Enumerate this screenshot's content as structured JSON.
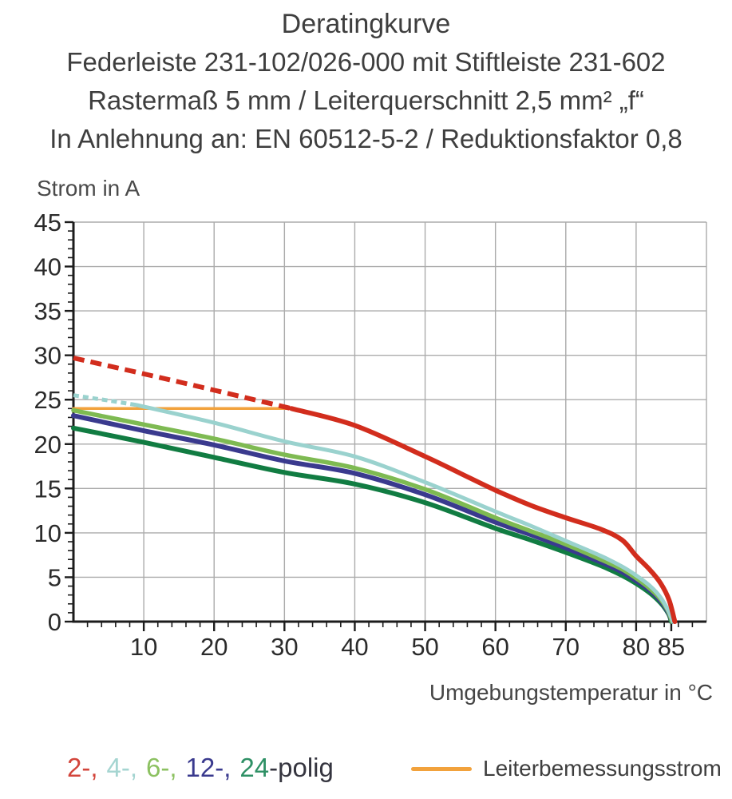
{
  "header": {
    "title": "Deratingkurve",
    "subtitle_product": "Federleiste 231-102/026-000 mit Stiftleiste 231-602",
    "subtitle_spec": "Rastermaß 5 mm / Leiterquerschnitt 2,5 mm² „f“",
    "subtitle_standard": "In Anlehnung an: EN 60512-5-2 / Reduktionsfaktor 0,8"
  },
  "chart_data": {
    "type": "line",
    "title": "Deratingkurve",
    "ylabel": "Strom in A",
    "xlabel": "Umgebungstemperatur in °C",
    "xlim": [
      0,
      90
    ],
    "ylim": [
      0,
      45
    ],
    "x_major_step": 10,
    "x_minor_step": 2,
    "y_major_step": 5,
    "y_minor_step": 1,
    "grid": true,
    "grid_color": "#ababab",
    "axis_color": "#1c1c1c",
    "tick_label_color": "#2b2b2b",
    "x_tick_labels": [
      10,
      20,
      30,
      40,
      50,
      60,
      70,
      80,
      85
    ],
    "y_tick_labels": [
      0,
      5,
      10,
      15,
      20,
      25,
      30,
      35,
      40,
      45
    ],
    "series": [
      {
        "name": "Leiterbemessungsstrom",
        "color": "#f2a23c",
        "width": 3.5,
        "segments": [
          {
            "dash": null,
            "points": [
              [
                0,
                24
              ],
              [
                31,
                24
              ]
            ]
          }
        ]
      },
      {
        "name": "24-polig",
        "color": "#117c42",
        "width": 6,
        "segments": [
          {
            "dash": null,
            "points": [
              [
                0,
                21.8
              ],
              [
                10,
                20.2
              ],
              [
                20,
                18.5
              ],
              [
                30,
                16.8
              ],
              [
                40,
                15.5
              ],
              [
                50,
                13.4
              ],
              [
                60,
                10.5
              ],
              [
                65,
                9.2
              ],
              [
                70,
                7.8
              ],
              [
                75,
                6.3
              ],
              [
                78,
                5.2
              ],
              [
                80,
                4.3
              ],
              [
                82,
                3.2
              ],
              [
                83.5,
                2.1
              ],
              [
                84.6,
                0.9
              ],
              [
                85,
                0
              ]
            ]
          }
        ]
      },
      {
        "name": "12-polig",
        "color": "#3a3a8e",
        "width": 6,
        "segments": [
          {
            "dash": null,
            "points": [
              [
                0,
                23.2
              ],
              [
                10,
                21.5
              ],
              [
                20,
                19.9
              ],
              [
                30,
                18.1
              ],
              [
                40,
                16.7
              ],
              [
                50,
                14.3
              ],
              [
                60,
                11.2
              ],
              [
                65,
                9.8
              ],
              [
                70,
                8.3
              ],
              [
                75,
                6.7
              ],
              [
                78,
                5.6
              ],
              [
                80,
                4.6
              ],
              [
                82,
                3.5
              ],
              [
                83.5,
                2.3
              ],
              [
                84.6,
                1.0
              ],
              [
                85.1,
                0
              ]
            ]
          }
        ]
      },
      {
        "name": "6-polig",
        "color": "#7eba52",
        "width": 5.5,
        "segments": [
          {
            "dash": null,
            "points": [
              [
                0,
                23.8
              ],
              [
                10,
                22.2
              ],
              [
                20,
                20.6
              ],
              [
                30,
                18.8
              ],
              [
                40,
                17.3
              ],
              [
                50,
                14.9
              ],
              [
                60,
                11.7
              ],
              [
                65,
                10.2
              ],
              [
                70,
                8.7
              ],
              [
                75,
                7.0
              ],
              [
                78,
                5.9
              ],
              [
                80,
                4.9
              ],
              [
                82,
                3.7
              ],
              [
                83.5,
                2.5
              ],
              [
                84.6,
                1.1
              ],
              [
                85.1,
                0
              ]
            ]
          }
        ]
      },
      {
        "name": "4-polig",
        "color": "#9ad2ce",
        "width": 5,
        "segments": [
          {
            "dash": "7 5",
            "points": [
              [
                0,
                25.5
              ],
              [
                5,
                24.9
              ],
              [
                9,
                24.4
              ]
            ]
          },
          {
            "dash": null,
            "points": [
              [
                9,
                24.4
              ],
              [
                20,
                22.4
              ],
              [
                30,
                20.3
              ],
              [
                40,
                18.6
              ],
              [
                50,
                15.7
              ],
              [
                60,
                12.4
              ],
              [
                65,
                10.8
              ],
              [
                70,
                9.1
              ],
              [
                75,
                7.4
              ],
              [
                78,
                6.2
              ],
              [
                80,
                5.2
              ],
              [
                82,
                4.0
              ],
              [
                83.5,
                2.7
              ],
              [
                84.6,
                1.2
              ],
              [
                85.2,
                0
              ]
            ]
          }
        ]
      },
      {
        "name": "2-polig",
        "color": "#d22d1d",
        "width": 6,
        "segments": [
          {
            "dash": "14 8",
            "points": [
              [
                0,
                29.7
              ],
              [
                15,
                27.0
              ],
              [
                31,
                24.0
              ]
            ]
          },
          {
            "dash": null,
            "points": [
              [
                31,
                24.0
              ],
              [
                40,
                22.1
              ],
              [
                50,
                18.6
              ],
              [
                55,
                16.7
              ],
              [
                60,
                14.8
              ],
              [
                65,
                13.1
              ],
              [
                70,
                11.7
              ],
              [
                75,
                10.4
              ],
              [
                78,
                9.2
              ],
              [
                80,
                7.4
              ],
              [
                82,
                5.8
              ],
              [
                83.5,
                4.3
              ],
              [
                84.7,
                2.4
              ],
              [
                85.5,
                0
              ]
            ]
          }
        ]
      }
    ]
  },
  "legend_poles": {
    "items": [
      {
        "label": "2-,",
        "color": "#d3453b",
        "gap": true
      },
      {
        "label": "4-,",
        "color": "#a5d5d1",
        "gap": true
      },
      {
        "label": "6-,",
        "color": "#8cc161",
        "gap": true
      },
      {
        "label": "12-,",
        "color": "#3a3a8e",
        "gap": true
      },
      {
        "label": "24",
        "color": "#2e9065",
        "gap": false
      }
    ],
    "suffix": {
      "label": "-polig",
      "color": "#35353f"
    }
  },
  "legend_current": {
    "label": "Leiterbemessungsstrom",
    "color": "#f2a23c"
  }
}
